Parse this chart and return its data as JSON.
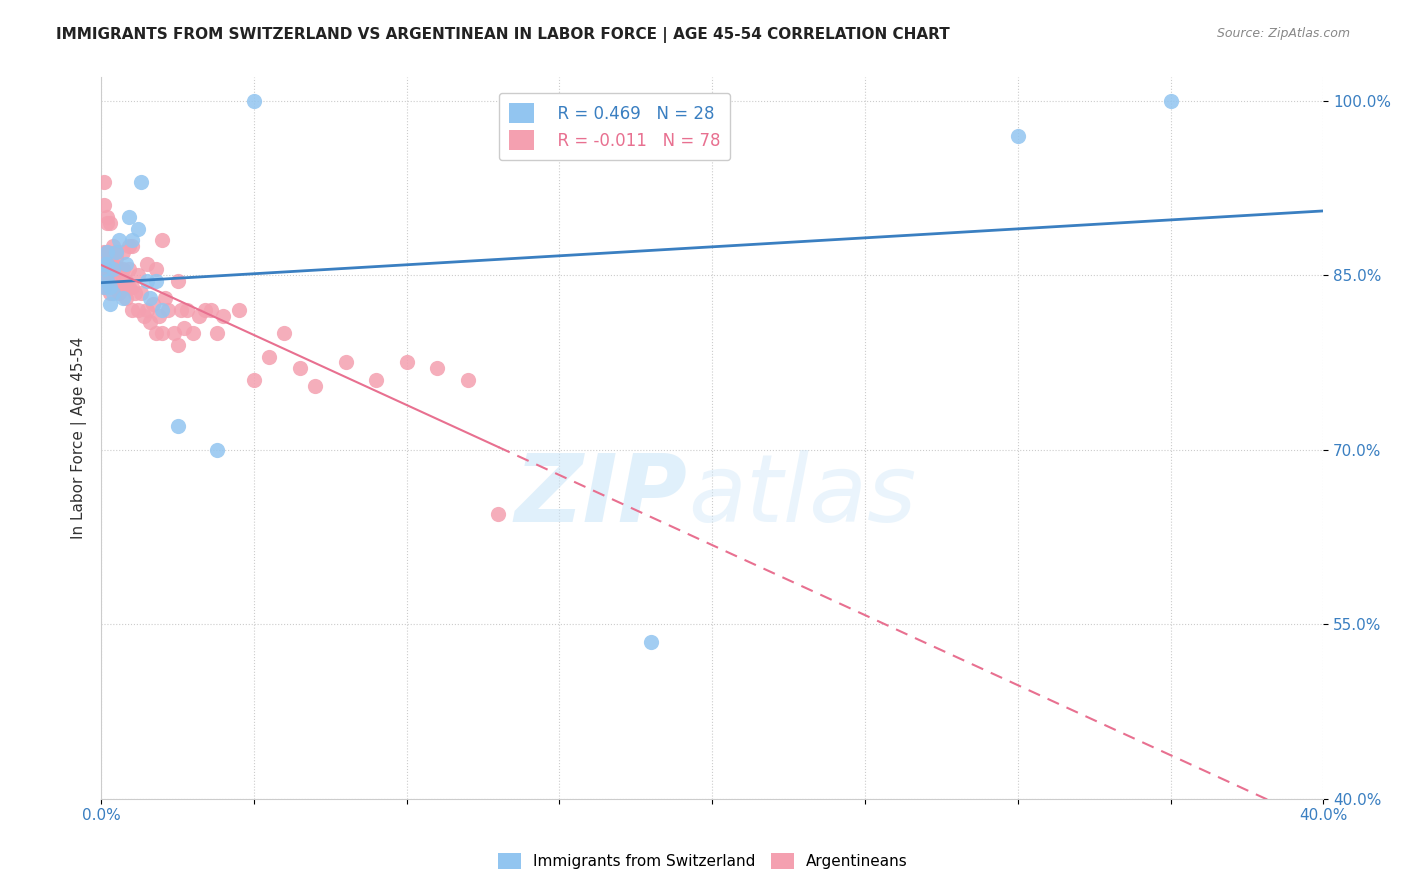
{
  "title": "IMMIGRANTS FROM SWITZERLAND VS ARGENTINEAN IN LABOR FORCE | AGE 45-54 CORRELATION CHART",
  "source": "Source: ZipAtlas.com",
  "ylabel": "In Labor Force | Age 45-54",
  "xlim": [
    0.0,
    0.4
  ],
  "ylim": [
    0.4,
    1.02
  ],
  "xticks": [
    0.0,
    0.05,
    0.1,
    0.15,
    0.2,
    0.25,
    0.3,
    0.35,
    0.4
  ],
  "yticks": [
    0.4,
    0.55,
    0.7,
    0.85,
    1.0
  ],
  "yticklabels": [
    "40.0%",
    "55.0%",
    "70.0%",
    "85.0%",
    "100.0%"
  ],
  "r_swiss": 0.469,
  "n_swiss": 28,
  "r_arg": -0.011,
  "n_arg": 78,
  "color_swiss": "#92C5F0",
  "color_arg": "#F4A0B0",
  "trendline_swiss": "#3A7FC1",
  "trendline_arg": "#E87090",
  "swiss_x": [
    0.001,
    0.001,
    0.001,
    0.002,
    0.002,
    0.002,
    0.003,
    0.003,
    0.004,
    0.004,
    0.005,
    0.006,
    0.007,
    0.008,
    0.009,
    0.01,
    0.012,
    0.013,
    0.015,
    0.016,
    0.018,
    0.02,
    0.025,
    0.038,
    0.05,
    0.18,
    0.3,
    0.35
  ],
  "swiss_y": [
    0.84,
    0.855,
    0.86,
    0.845,
    0.86,
    0.87,
    0.825,
    0.84,
    0.835,
    0.855,
    0.87,
    0.88,
    0.83,
    0.86,
    0.9,
    0.88,
    0.89,
    0.93,
    0.845,
    0.83,
    0.845,
    0.82,
    0.72,
    0.7,
    1.0,
    0.535,
    0.97,
    1.0
  ],
  "arg_x": [
    0.001,
    0.001,
    0.001,
    0.001,
    0.002,
    0.002,
    0.002,
    0.002,
    0.003,
    0.003,
    0.003,
    0.004,
    0.004,
    0.004,
    0.005,
    0.005,
    0.006,
    0.006,
    0.007,
    0.007,
    0.008,
    0.008,
    0.009,
    0.009,
    0.01,
    0.01,
    0.011,
    0.012,
    0.013,
    0.014,
    0.015,
    0.016,
    0.017,
    0.018,
    0.019,
    0.02,
    0.021,
    0.022,
    0.024,
    0.025,
    0.026,
    0.027,
    0.028,
    0.03,
    0.032,
    0.034,
    0.036,
    0.038,
    0.04,
    0.045,
    0.05,
    0.055,
    0.06,
    0.065,
    0.07,
    0.08,
    0.09,
    0.1,
    0.11,
    0.12,
    0.001,
    0.001,
    0.002,
    0.002,
    0.003,
    0.004,
    0.005,
    0.006,
    0.007,
    0.008,
    0.009,
    0.01,
    0.012,
    0.015,
    0.018,
    0.02,
    0.025,
    0.13
  ],
  "arg_y": [
    0.84,
    0.855,
    0.86,
    0.87,
    0.845,
    0.86,
    0.85,
    0.87,
    0.835,
    0.845,
    0.855,
    0.84,
    0.85,
    0.86,
    0.87,
    0.855,
    0.835,
    0.84,
    0.845,
    0.855,
    0.83,
    0.84,
    0.855,
    0.84,
    0.82,
    0.84,
    0.835,
    0.82,
    0.835,
    0.815,
    0.82,
    0.81,
    0.825,
    0.8,
    0.815,
    0.8,
    0.83,
    0.82,
    0.8,
    0.79,
    0.82,
    0.805,
    0.82,
    0.8,
    0.815,
    0.82,
    0.82,
    0.8,
    0.815,
    0.82,
    0.76,
    0.78,
    0.8,
    0.77,
    0.755,
    0.775,
    0.76,
    0.775,
    0.77,
    0.76,
    0.91,
    0.93,
    0.9,
    0.895,
    0.895,
    0.875,
    0.865,
    0.855,
    0.87,
    0.845,
    0.875,
    0.875,
    0.85,
    0.86,
    0.855,
    0.88,
    0.845,
    0.645
  ]
}
